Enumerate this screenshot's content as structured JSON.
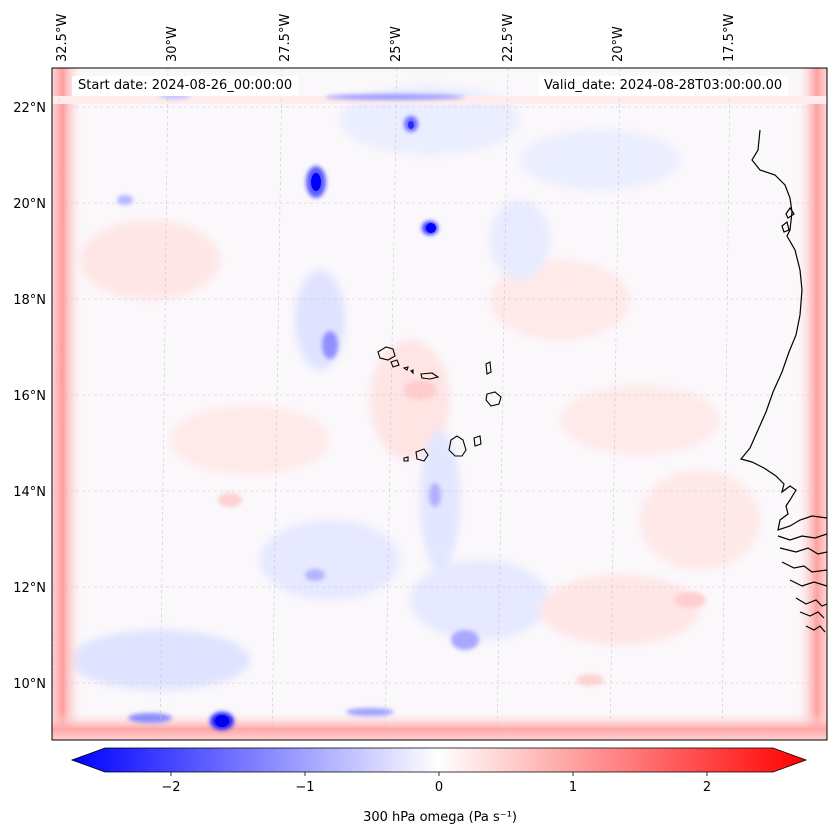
{
  "map": {
    "start_date_label": "Start date: 2024-08-26_00:00:00",
    "valid_date_label": "Valid_date: 2024-08-28T03:00:00.00",
    "lon_labels": [
      "32.5°W",
      "30°W",
      "27.5°W",
      "25°W",
      "22.5°W",
      "20°W",
      "17.5°W"
    ],
    "lat_labels": [
      "22°N",
      "20°N",
      "18°N",
      "16°N",
      "14°N",
      "12°N",
      "10°N"
    ],
    "field": "300 hPa omega",
    "region": "Cape Verde and West African coast"
  },
  "colorbar": {
    "label": "300 hPa omega (Pa s⁻¹)",
    "ticks": [
      "−2",
      "−1",
      "0",
      "1",
      "2"
    ],
    "min": -2.6,
    "max": 2.6,
    "colors": {
      "negative": "#0000ff",
      "zero": "#ffffff",
      "positive": "#ff0000"
    }
  }
}
